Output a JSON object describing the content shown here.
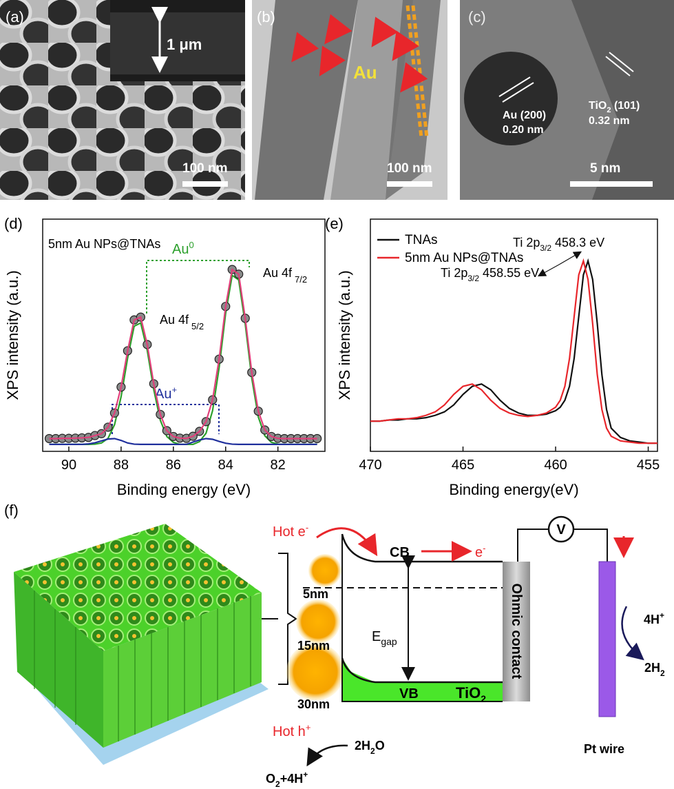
{
  "panels": [
    "(a)",
    "(b)",
    "(c)",
    "(d)",
    "(e)",
    "(f)"
  ],
  "images": {
    "a": {
      "inset_scale": "1 μm",
      "scale": "100 nm"
    },
    "b": {
      "label": "Au",
      "scale": "100 nm"
    },
    "c": {
      "au_plane": "Au (200)",
      "au_spacing": "0.20 nm",
      "tio2_plane": [
        "TiO",
        "2",
        " (101)"
      ],
      "tio2_spacing": "0.32 nm",
      "scale": "5 nm"
    }
  },
  "chart_data": [
    {
      "type": "line",
      "x_label": "Binding energy (eV)",
      "y_label": "XPS intensity (a.u.)",
      "xlim": [
        91,
        80.2
      ],
      "ylim": [
        0,
        1
      ],
      "xticks": [
        90,
        88,
        86,
        84,
        82
      ],
      "x": [
        90.75,
        90.5,
        90.25,
        90.0,
        89.75,
        89.5,
        89.25,
        89.0,
        88.75,
        88.5,
        88.25,
        88.0,
        87.75,
        87.5,
        87.25,
        87.0,
        86.75,
        86.5,
        86.25,
        86.0,
        85.75,
        85.5,
        85.25,
        85.0,
        84.75,
        84.5,
        84.25,
        84.0,
        83.75,
        83.5,
        83.25,
        83.0,
        82.75,
        82.5,
        82.25,
        82.0,
        81.75,
        81.5,
        81.25,
        81.0,
        80.75,
        80.5
      ],
      "series": [
        {
          "color": "#2ca02c",
          "values": [
            0.03,
            0.03,
            0.03,
            0.03,
            0.03,
            0.03,
            0.03,
            0.031,
            0.036,
            0.056,
            0.115,
            0.235,
            0.402,
            0.539,
            0.553,
            0.435,
            0.266,
            0.134,
            0.064,
            0.039,
            0.03,
            0.03,
            0.03,
            0.042,
            0.078,
            0.175,
            0.359,
            0.594,
            0.758,
            0.738,
            0.548,
            0.315,
            0.148,
            0.067,
            0.039,
            0.031,
            0.03,
            0.03,
            0.03,
            0.03,
            0.03,
            0.03
          ]
        },
        {
          "color": "#1f2f9c",
          "values": [
            0.03,
            0.03,
            0.03,
            0.03,
            0.03,
            0.03,
            0.032,
            0.037,
            0.045,
            0.053,
            0.055,
            0.047,
            0.036,
            0.031,
            0.03,
            0.03,
            0.03,
            0.03,
            0.03,
            0.03,
            0.03,
            0.03,
            0.04,
            0.049,
            0.055,
            0.052,
            0.043,
            0.035,
            0.031,
            0.03,
            0.03,
            0.03,
            0.03,
            0.03,
            0.03,
            0.03,
            0.03,
            0.03,
            0.03,
            0.03,
            0.03,
            0.03
          ]
        },
        {
          "color": "#8a8a8a",
          "marker": true,
          "values": [
            0.055,
            0.055,
            0.056,
            0.056,
            0.057,
            0.058,
            0.06,
            0.068,
            0.076,
            0.104,
            0.165,
            0.277,
            0.433,
            0.566,
            0.578,
            0.46,
            0.291,
            0.159,
            0.089,
            0.064,
            0.057,
            0.056,
            0.065,
            0.086,
            0.128,
            0.222,
            0.397,
            0.624,
            0.783,
            0.763,
            0.573,
            0.34,
            0.173,
            0.092,
            0.064,
            0.056,
            0.055,
            0.055,
            0.055,
            0.055,
            0.055,
            0.055
          ]
        },
        {
          "color": "#e0407a",
          "values": [
            0.055,
            0.055,
            0.056,
            0.056,
            0.057,
            0.058,
            0.06,
            0.068,
            0.076,
            0.104,
            0.165,
            0.277,
            0.433,
            0.566,
            0.578,
            0.46,
            0.291,
            0.159,
            0.089,
            0.064,
            0.057,
            0.056,
            0.065,
            0.086,
            0.128,
            0.222,
            0.397,
            0.624,
            0.783,
            0.763,
            0.573,
            0.34,
            0.173,
            0.092,
            0.064,
            0.056,
            0.055,
            0.055,
            0.055,
            0.055,
            0.055,
            0.055
          ]
        }
      ],
      "annotations": {
        "sample": "5nm Au NPs@TNAs",
        "au0": [
          "Au",
          "0"
        ],
        "au_plus": [
          "Au",
          "+"
        ],
        "au_5_2": [
          "Au 4f",
          "5/2"
        ],
        "au_7_2": [
          "Au 4f",
          "7/2"
        ]
      }
    },
    {
      "type": "line",
      "x_label": "Binding energy(eV)",
      "y_label": "XPS intensity (a.u.)",
      "xlim": [
        470,
        454.5
      ],
      "ylim": [
        0,
        1
      ],
      "xticks": [
        470,
        465,
        460,
        455
      ],
      "legend": "upper left",
      "x": [
        470,
        469.5,
        469,
        468.5,
        468,
        467.5,
        467,
        466.5,
        466,
        465.5,
        465,
        464.5,
        464,
        463.5,
        463,
        462.5,
        462,
        461.5,
        461,
        460.5,
        460,
        459.75,
        459.5,
        459.25,
        459,
        458.75,
        458.5,
        458.25,
        458,
        457.75,
        457.5,
        457.25,
        457,
        456.5,
        456,
        455.5,
        455,
        454.5
      ],
      "series": [
        {
          "name": "TNAs",
          "color": "#111111",
          "values": [
            0.13,
            0.13,
            0.135,
            0.135,
            0.14,
            0.14,
            0.145,
            0.155,
            0.17,
            0.2,
            0.245,
            0.28,
            0.29,
            0.265,
            0.22,
            0.185,
            0.165,
            0.155,
            0.155,
            0.16,
            0.175,
            0.19,
            0.22,
            0.28,
            0.4,
            0.58,
            0.76,
            0.82,
            0.74,
            0.55,
            0.33,
            0.18,
            0.1,
            0.06,
            0.045,
            0.04,
            0.035,
            0.035
          ]
        },
        {
          "name": "5nm Au NPs@TNAs",
          "color": "#e8262b",
          "values": [
            0.13,
            0.13,
            0.135,
            0.14,
            0.14,
            0.145,
            0.155,
            0.17,
            0.2,
            0.245,
            0.28,
            0.29,
            0.265,
            0.22,
            0.185,
            0.165,
            0.155,
            0.15,
            0.155,
            0.165,
            0.19,
            0.22,
            0.28,
            0.4,
            0.58,
            0.76,
            0.82,
            0.74,
            0.55,
            0.33,
            0.18,
            0.1,
            0.065,
            0.045,
            0.04,
            0.035,
            0.035,
            0.035
          ]
        }
      ],
      "annotations": {
        "ti_458_3": [
          "Ti 2p",
          "3/2",
          " 458.3 eV"
        ],
        "ti_458_55": [
          "Ti 2p",
          "3/2",
          " 458.55 eV"
        ]
      }
    }
  ],
  "diagram": {
    "hot_e": [
      "Hot e",
      "-"
    ],
    "cb": "CB",
    "e_minus": [
      "e",
      "-"
    ],
    "voltmeter": "V",
    "size_5": "5nm",
    "size_15": "15nm",
    "size_30": "30nm",
    "egap": [
      "E",
      "gap"
    ],
    "vb": "VB",
    "tio2": [
      "TiO",
      "2"
    ],
    "ohmic": "Ohmic contact",
    "h_plus": [
      "4H",
      "+"
    ],
    "h2": [
      "2H",
      "2"
    ],
    "pt": "Pt wire",
    "hot_h": [
      "Hot h",
      "+"
    ],
    "water": [
      "2H",
      "2",
      "O"
    ],
    "oxygen": [
      "O",
      "2",
      "+4H",
      "+"
    ]
  }
}
